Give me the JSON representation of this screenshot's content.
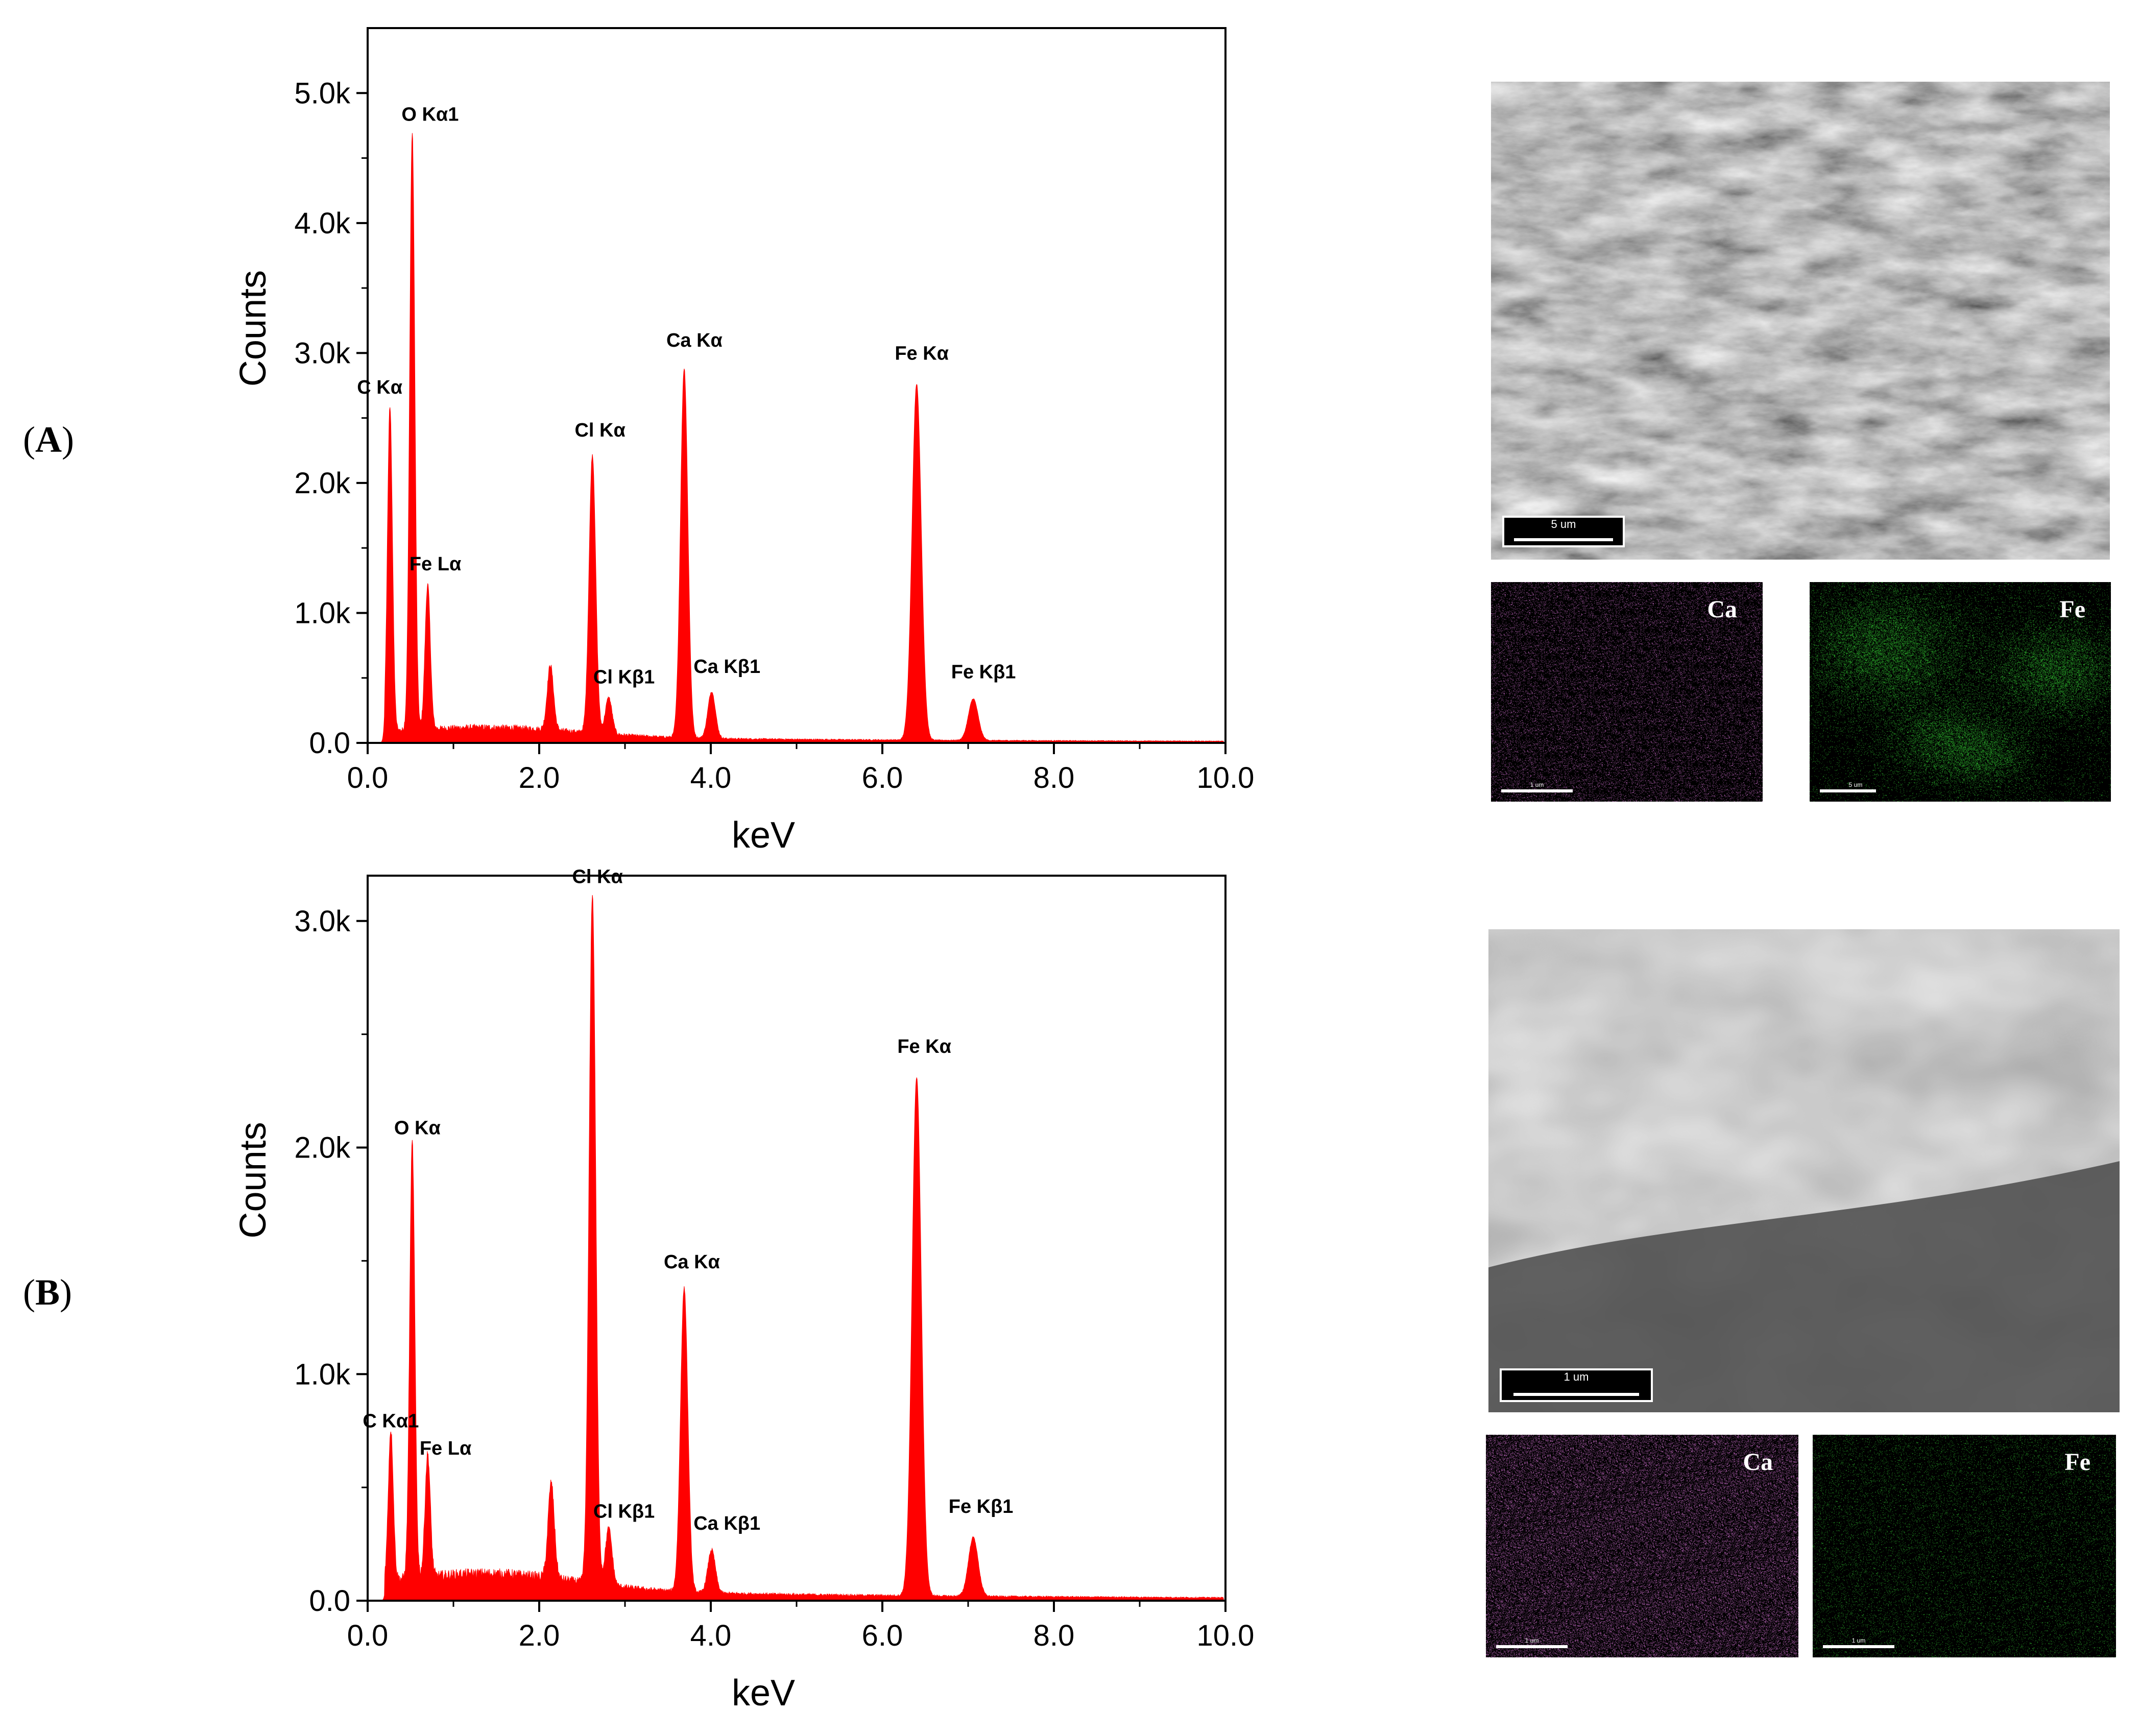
{
  "panels": [
    {
      "label": "A"
    },
    {
      "label": "B"
    }
  ],
  "chart_data": [
    {
      "type": "area",
      "panel": "A",
      "xlabel": "keV",
      "ylabel": "Counts",
      "xlim": [
        0,
        10
      ],
      "ylim": [
        0,
        5500
      ],
      "xticks": [
        "0.0",
        "2.0",
        "4.0",
        "6.0",
        "8.0",
        "10.0"
      ],
      "xtick_values": [
        0,
        2,
        4,
        6,
        8,
        10
      ],
      "yticks": [
        "0.0",
        "1.0k",
        "2.0k",
        "3.0k",
        "4.0k",
        "5.0k"
      ],
      "ytick_values": [
        0,
        1000,
        2000,
        3000,
        4000,
        5000
      ],
      "color": "#ff0000",
      "peaks": [
        {
          "label": "C Kα",
          "x": 0.26,
          "y": 2550
        },
        {
          "label": "O Kα1",
          "x": 0.52,
          "y": 4650
        },
        {
          "label": "Fe Lα",
          "x": 0.7,
          "y": 1170
        },
        {
          "label": "",
          "x": 2.13,
          "y": 560
        },
        {
          "label": "Cl Kα",
          "x": 2.62,
          "y": 2200
        },
        {
          "label": "Cl Kβ1",
          "x": 2.81,
          "y": 340
        },
        {
          "label": "Ca Kα",
          "x": 3.69,
          "y": 2900
        },
        {
          "label": "Ca Kβ1",
          "x": 4.01,
          "y": 420
        },
        {
          "label": "Fe Kα",
          "x": 6.4,
          "y": 2800
        },
        {
          "label": "Fe Kβ1",
          "x": 7.06,
          "y": 380
        }
      ]
    },
    {
      "type": "area",
      "panel": "B",
      "xlabel": "keV",
      "ylabel": "Counts",
      "xlim": [
        0,
        10
      ],
      "ylim": [
        0,
        3200
      ],
      "xticks": [
        "0.0",
        "2.0",
        "4.0",
        "6.0",
        "8.0",
        "10.0"
      ],
      "xtick_values": [
        0,
        2,
        4,
        6,
        8,
        10
      ],
      "yticks": [
        "0.0",
        "1.0k",
        "2.0k",
        "3.0k"
      ],
      "ytick_values": [
        0,
        1000,
        2000,
        3000
      ],
      "color": "#ff0000",
      "peaks": [
        {
          "label": "C Kα1",
          "x": 0.27,
          "y": 720
        },
        {
          "label": "O Kα",
          "x": 0.52,
          "y": 1980
        },
        {
          "label": "Fe Lα",
          "x": 0.7,
          "y": 600
        },
        {
          "label": "",
          "x": 2.14,
          "y": 480
        },
        {
          "label": "Cl Kα",
          "x": 2.62,
          "y": 3100
        },
        {
          "label": "Cl Kβ1",
          "x": 2.81,
          "y": 310
        },
        {
          "label": "Ca Kα",
          "x": 3.69,
          "y": 1400
        },
        {
          "label": "Ca Kβ1",
          "x": 4.01,
          "y": 250
        },
        {
          "label": "Fe Kα",
          "x": 6.4,
          "y": 2350
        },
        {
          "label": "Fe Kβ1",
          "x": 7.06,
          "y": 320
        }
      ]
    }
  ],
  "images": {
    "A": {
      "sem_scale": "5 um",
      "maps": [
        {
          "element": "Ca",
          "color": "#d070d0",
          "scale": "1 um"
        },
        {
          "element": "Fe",
          "color": "#30c030",
          "scale": "5 um"
        }
      ]
    },
    "B": {
      "sem_scale": "1 um",
      "maps": [
        {
          "element": "Ca",
          "color": "#d070d0",
          "scale": "1 um"
        },
        {
          "element": "Fe",
          "color": "#30c030",
          "scale": "1 um"
        }
      ]
    }
  }
}
